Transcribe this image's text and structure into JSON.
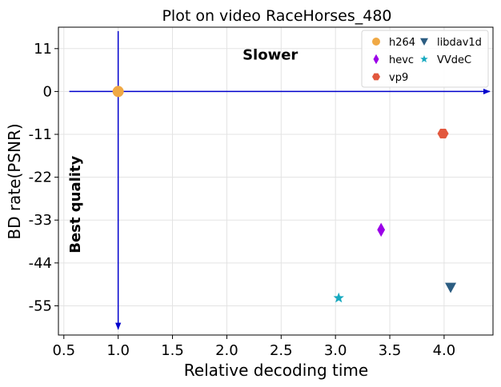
{
  "chart_data": {
    "type": "scatter",
    "title": "Plot on video RaceHorses_480",
    "xlabel": "Relative decoding time",
    "ylabel": "BD rate(PSNR)",
    "xlim": [
      0.45,
      4.45
    ],
    "ylim": [
      -62.5,
      16.5
    ],
    "x_ticks": [
      0.5,
      1.0,
      1.5,
      2.0,
      2.5,
      3.0,
      3.5,
      4.0
    ],
    "x_tick_labels": [
      "0.5",
      "1.0",
      "1.5",
      "2.0",
      "2.5",
      "3.0",
      "3.5",
      "4.0"
    ],
    "y_ticks": [
      11,
      0,
      -11,
      -22,
      -33,
      -44,
      -55
    ],
    "y_tick_labels": [
      "11",
      "0",
      "-11",
      "-22",
      "-33",
      "-44",
      "-55"
    ],
    "grid": true,
    "legend_position": "top-right",
    "series": [
      {
        "name": "h264",
        "marker": "circle",
        "color": "#f0a945",
        "points": [
          {
            "x": 1.0,
            "y": 0.0
          }
        ]
      },
      {
        "name": "hevc",
        "marker": "thin-diamond",
        "color": "#9b00e8",
        "points": [
          {
            "x": 3.42,
            "y": -35.5
          }
        ]
      },
      {
        "name": "vp9",
        "marker": "hexagon",
        "color": "#e2583e",
        "points": [
          {
            "x": 3.99,
            "y": -10.8
          }
        ]
      },
      {
        "name": "libdav1d",
        "marker": "triangle-down",
        "color": "#2c5d82",
        "points": [
          {
            "x": 4.06,
            "y": -50.3
          }
        ]
      },
      {
        "name": "VVdeC",
        "marker": "star",
        "color": "#17a9bf",
        "points": [
          {
            "x": 3.03,
            "y": -53.0
          }
        ]
      }
    ],
    "annotations": [
      {
        "text": "Slower",
        "x": 2.4,
        "y": 8.2,
        "rotation": 0
      },
      {
        "text": "Best quality",
        "x": 0.65,
        "y": -29,
        "rotation": -90
      }
    ],
    "reference_arrows": {
      "color": "#0000cc",
      "horizontal": {
        "y": 0,
        "x_from": 0.55,
        "x_to": 4.42
      },
      "vertical": {
        "x": 1.0,
        "y_from": 15.5,
        "y_to": -61.0
      }
    }
  }
}
